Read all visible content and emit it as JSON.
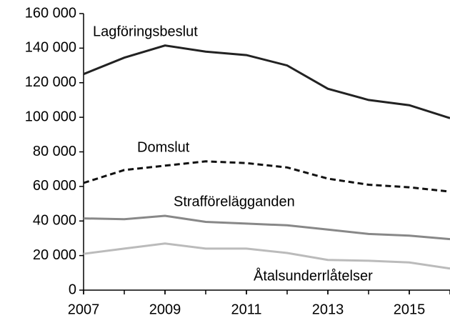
{
  "chart_data": {
    "type": "line",
    "x": [
      2007,
      2008,
      2009,
      2010,
      2011,
      2012,
      2013,
      2014,
      2015,
      2016
    ],
    "xlim": [
      2007,
      2016
    ],
    "xticks": [
      2007,
      2009,
      2011,
      2013,
      2015
    ],
    "ylim": [
      0,
      160000
    ],
    "yticks": [
      0,
      {
        "value": 20000,
        "label": "20 000"
      },
      {
        "value": 40000,
        "label": "40 000"
      },
      {
        "value": 60000,
        "label": "60 000"
      },
      {
        "value": 80000,
        "label": "80 000"
      },
      {
        "value": 100000,
        "label": "100 000"
      },
      {
        "value": 120000,
        "label": "120 000"
      },
      {
        "value": 140000,
        "label": "140 000"
      },
      {
        "value": 160000,
        "label": "160 000"
      }
    ],
    "grid": false,
    "series": [
      {
        "name": "Lagföringsbeslut",
        "color": "#222222",
        "linestyle": "solid",
        "values": [
          125000,
          134500,
          141500,
          138000,
          136000,
          130000,
          116500,
          110000,
          107000,
          99500
        ]
      },
      {
        "name": "Domslut",
        "color": "#111111",
        "linestyle": "dashed",
        "values": [
          62000,
          69500,
          72000,
          74500,
          73500,
          71000,
          64500,
          61000,
          59500,
          57000
        ]
      },
      {
        "name": "Strafförelägganden",
        "color": "#888888",
        "linestyle": "solid",
        "values": [
          41500,
          41000,
          43000,
          39500,
          38500,
          37500,
          35000,
          32500,
          31500,
          29500
        ]
      },
      {
        "name": "Åtalsunderrlåtelser",
        "color": "#bbbbbb",
        "linestyle": "solid",
        "values": [
          21000,
          24000,
          27000,
          24000,
          24000,
          21500,
          17500,
          17000,
          16000,
          12500
        ]
      }
    ]
  }
}
